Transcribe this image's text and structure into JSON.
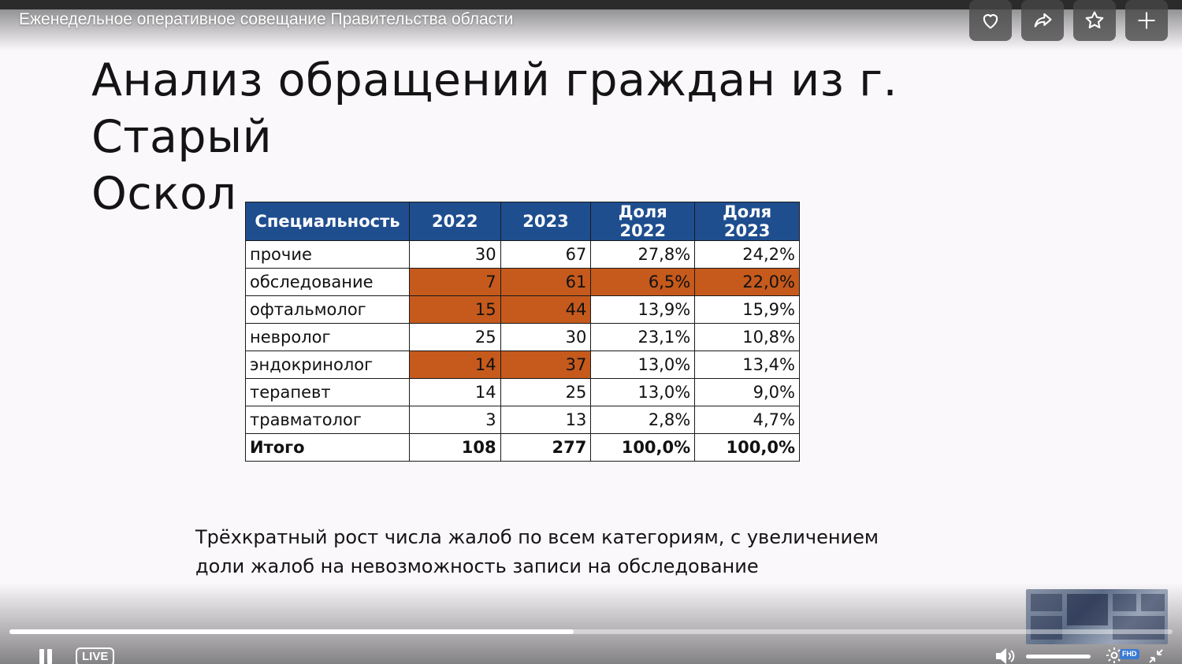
{
  "player": {
    "video_title": "Еженедельное оперативное совещание Правительства области",
    "live_label": "LIVE",
    "quality_badge": "FHD",
    "progress_fraction": 0.485,
    "actions": [
      {
        "name": "like",
        "icon": "heart-icon"
      },
      {
        "name": "share",
        "icon": "share-icon"
      },
      {
        "name": "favorite",
        "icon": "star-icon"
      },
      {
        "name": "add",
        "icon": "plus-icon"
      }
    ]
  },
  "slide": {
    "title_line1": "Анализ обращений граждан из г. Старый",
    "title_line2": "Оскол",
    "table": {
      "headers": [
        "Специальность",
        "2022",
        "2023",
        "Доля 2022",
        "Доля 2023"
      ],
      "rows": [
        [
          "прочие",
          "30",
          "67",
          "27,8%",
          "24,2%"
        ],
        [
          "обследование",
          "7",
          "61",
          "6,5%",
          "22,0%"
        ],
        [
          "офтальмолог",
          "15",
          "44",
          "13,9%",
          "15,9%"
        ],
        [
          "невролог",
          "25",
          "30",
          "23,1%",
          "10,8%"
        ],
        [
          "эндокринолог",
          "14",
          "37",
          "13,0%",
          "13,4%"
        ],
        [
          "терапевт",
          "14",
          "25",
          "13,0%",
          "9,0%"
        ],
        [
          "травматолог",
          "3",
          "13",
          "2,8%",
          "4,7%"
        ]
      ],
      "total": [
        "Итого",
        "108",
        "277",
        "100,0%",
        "100,0%"
      ]
    },
    "conclusion_line1": "Трёхкратный рост числа жалоб по всем категориям,  с увеличением",
    "conclusion_line2": "доли жалоб на невозможность записи на обследование"
  },
  "colors": {
    "header_blue": "#1f4e8f",
    "highlight_orange": "#c55a1c",
    "slide_background": "#fbf8fc"
  }
}
